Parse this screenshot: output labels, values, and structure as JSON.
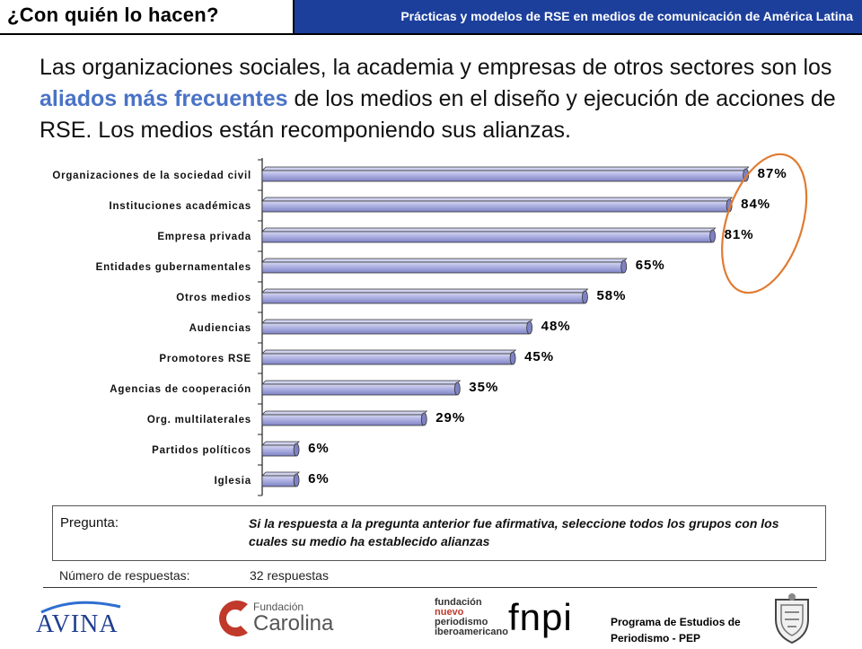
{
  "header": {
    "section_title": "¿Con quién lo hacen?",
    "subtitle": "Prácticas y modelos de RSE en medios de comunicación de América Latina",
    "bar_color": "#1c3f9c"
  },
  "headline": {
    "part1": "Las organizaciones sociales, la academia y empresas de otros sectores son los ",
    "highlight": "aliados más frecuentes",
    "part2": " de los medios en el diseño y ejecución de acciones de RSE. Los medios están recomponiendo sus alianzas.",
    "highlight_color": "#4a73c6"
  },
  "chart_data": {
    "type": "bar",
    "orientation": "horizontal",
    "categories": [
      "Organizaciones de la sociedad civil",
      "Instituciones académicas",
      "Empresa privada",
      "Entidades gubernamentales",
      "Otros medios",
      "Audiencias",
      "Promotores RSE",
      "Agencias de cooperación",
      "Org. multilaterales",
      "Partidos políticos",
      "Iglesia"
    ],
    "values": [
      87,
      84,
      81,
      65,
      58,
      48,
      45,
      35,
      29,
      6,
      6
    ],
    "value_labels": [
      "87%",
      "84%",
      "81%",
      "65%",
      "58%",
      "48%",
      "45%",
      "35%",
      "29%",
      "6%",
      "6%"
    ],
    "xlim": [
      0,
      100
    ],
    "bar_color": "#a9acdf",
    "highlight_ellipse_color": "#e07b32",
    "highlighted_categories": [
      0,
      1,
      2
    ]
  },
  "question": {
    "label": "Pregunta:",
    "text": "Si la respuesta a la pregunta anterior fue afirmativa, seleccione todos los grupos con los cuales su medio ha establecido alianzas"
  },
  "responses": {
    "label": "Número de respuestas:",
    "value": "32 respuestas"
  },
  "footer": {
    "avina": "AVINA",
    "carolina_small": "Fundación",
    "carolina_big": "Carolina",
    "fnpi_line1": "fundación",
    "fnpi_line2": "nuevo",
    "fnpi_line3": "periodismo",
    "fnpi_line4": "iberoamericano",
    "fnpi_big": "fnpi",
    "pep_line1": "Programa de Estudios de",
    "pep_line2": "Periodismo - PEP"
  }
}
